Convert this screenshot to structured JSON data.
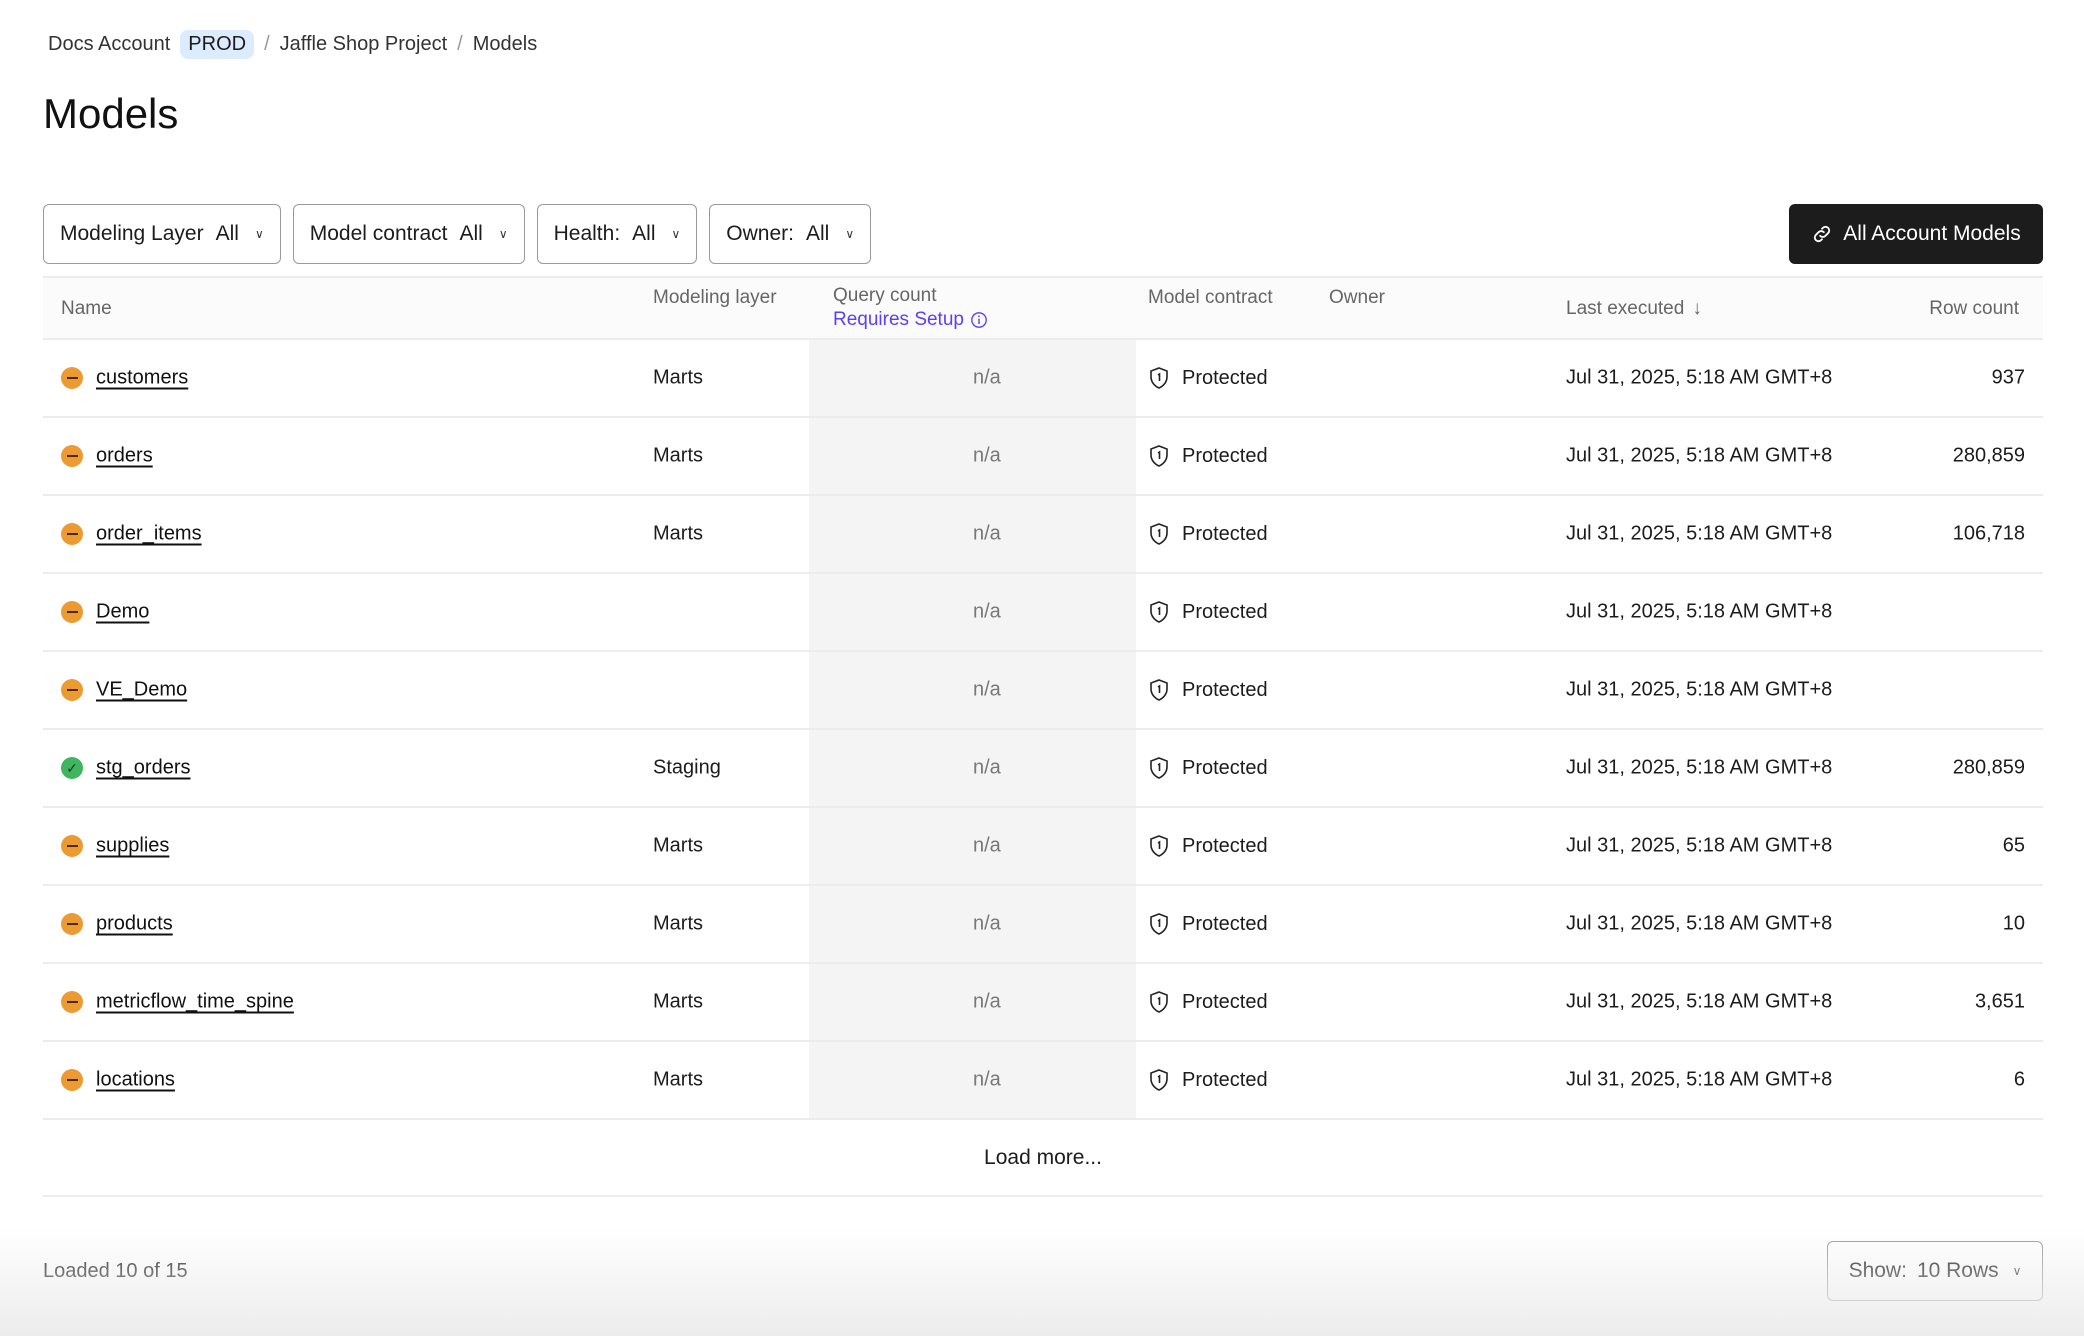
{
  "breadcrumb": {
    "account": "Docs Account",
    "env_badge": "PROD",
    "project": "Jaffle Shop Project",
    "current": "Models",
    "separator": "/"
  },
  "page_title": "Models",
  "filters": [
    {
      "label": "Modeling Layer",
      "value": "All"
    },
    {
      "label": "Model contract",
      "value": "All"
    },
    {
      "label": "Health:",
      "value": "All"
    },
    {
      "label": "Owner:",
      "value": "All"
    }
  ],
  "all_account_models_button": {
    "label": "All Account Models",
    "icon": "link-icon"
  },
  "table": {
    "headers": {
      "name": "Name",
      "modeling_layer": "Modeling layer",
      "query_count": "Query count",
      "requires_setup": "Requires Setup",
      "model_contract": "Model contract",
      "owner": "Owner",
      "last_executed": "Last executed",
      "sort_indicator": "↓",
      "row_count": "Row count"
    },
    "rows": [
      {
        "status": "warning",
        "name": "customers",
        "layer": "Marts",
        "query": "n/a",
        "contract": "Protected",
        "owner": "",
        "last_executed": "Jul 31, 2025, 5:18 AM GMT+8",
        "row_count": "937"
      },
      {
        "status": "warning",
        "name": "orders",
        "layer": "Marts",
        "query": "n/a",
        "contract": "Protected",
        "owner": "",
        "last_executed": "Jul 31, 2025, 5:18 AM GMT+8",
        "row_count": "280,859"
      },
      {
        "status": "warning",
        "name": "order_items",
        "layer": "Marts",
        "query": "n/a",
        "contract": "Protected",
        "owner": "",
        "last_executed": "Jul 31, 2025, 5:18 AM GMT+8",
        "row_count": "106,718"
      },
      {
        "status": "warning",
        "name": "Demo",
        "layer": "",
        "query": "n/a",
        "contract": "Protected",
        "owner": "",
        "last_executed": "Jul 31, 2025, 5:18 AM GMT+8",
        "row_count": ""
      },
      {
        "status": "warning",
        "name": "VE_Demo",
        "layer": "",
        "query": "n/a",
        "contract": "Protected",
        "owner": "",
        "last_executed": "Jul 31, 2025, 5:18 AM GMT+8",
        "row_count": ""
      },
      {
        "status": "healthy",
        "name": "stg_orders",
        "layer": "Staging",
        "query": "n/a",
        "contract": "Protected",
        "owner": "",
        "last_executed": "Jul 31, 2025, 5:18 AM GMT+8",
        "row_count": "280,859"
      },
      {
        "status": "warning",
        "name": "supplies",
        "layer": "Marts",
        "query": "n/a",
        "contract": "Protected",
        "owner": "",
        "last_executed": "Jul 31, 2025, 5:18 AM GMT+8",
        "row_count": "65"
      },
      {
        "status": "warning",
        "name": "products",
        "layer": "Marts",
        "query": "n/a",
        "contract": "Protected",
        "owner": "",
        "last_executed": "Jul 31, 2025, 5:18 AM GMT+8",
        "row_count": "10"
      },
      {
        "status": "warning",
        "name": "metricflow_time_spine",
        "layer": "Marts",
        "query": "n/a",
        "contract": "Protected",
        "owner": "",
        "last_executed": "Jul 31, 2025, 5:18 AM GMT+8",
        "row_count": "3,651"
      },
      {
        "status": "warning",
        "name": "locations",
        "layer": "Marts",
        "query": "n/a",
        "contract": "Protected",
        "owner": "",
        "last_executed": "Jul 31, 2025, 5:18 AM GMT+8",
        "row_count": "6"
      }
    ],
    "load_more": "Load more..."
  },
  "footer": {
    "loaded": "Loaded 10 of 15",
    "show_label": "Show:",
    "show_value": "10 Rows"
  },
  "colors": {
    "warning": "#ec9b33",
    "healthy": "#3fb55f",
    "link_accent": "#5b3ff5",
    "primary_button": "#1c1c1c",
    "env_badge": "#dcebfd"
  }
}
